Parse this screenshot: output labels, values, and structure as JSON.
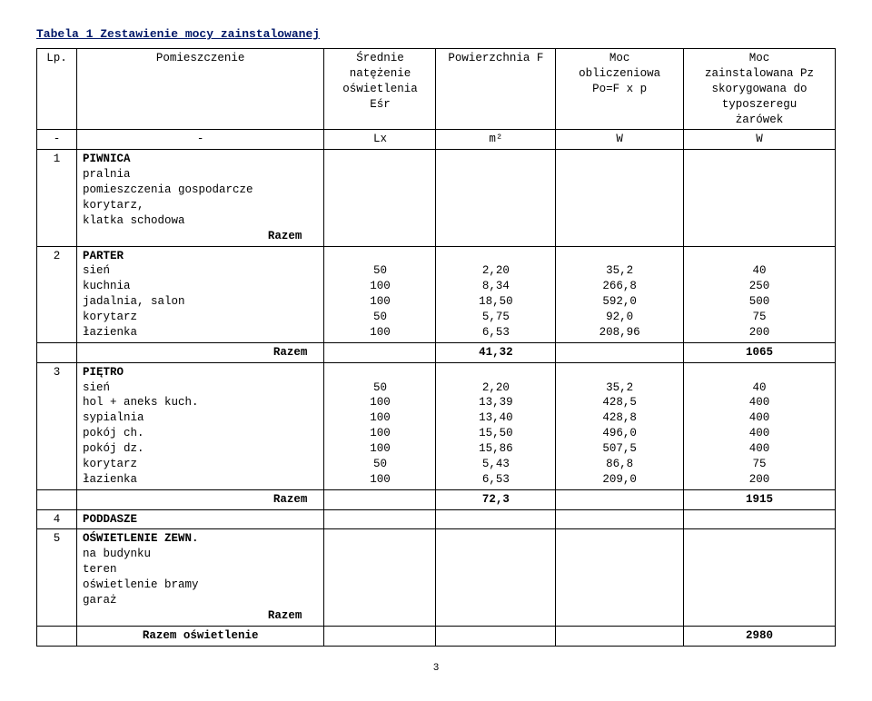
{
  "title": "Tabela 1 Zestawienie mocy zainstalowanej",
  "page_number": "3",
  "header": {
    "lp": "Lp.",
    "pomieszczenie": "Pomieszczenie",
    "esr": "Średnie\nnatężenie\noświetlenia\nEśr",
    "f": "Powierzchnia F",
    "po": "Moc\nobliczeniowa\nPo=F x p",
    "pz": "Moc\nzainstalowana Pz\nskorygowana do\ntyposzeregu\nżarówek"
  },
  "units": {
    "lp": "-",
    "pom": "-",
    "esr": "Lx",
    "f": "m²",
    "po": "W",
    "pz": "W"
  },
  "sec1": {
    "n": "1",
    "name": "PIWNICA",
    "rows": [
      "pralnia",
      "pomieszczenia gospodarcze",
      "korytarz,",
      "klatka schodowa"
    ],
    "razem": "Razem"
  },
  "sec2": {
    "n": "2",
    "name": "PARTER",
    "rows": [
      {
        "label": "sień",
        "esr": "50",
        "f": "2,20",
        "po": "35,2",
        "pz": "40"
      },
      {
        "label": "kuchnia",
        "esr": "100",
        "f": "8,34",
        "po": "266,8",
        "pz": "250"
      },
      {
        "label": "jadalnia, salon",
        "esr": "100",
        "f": "18,50",
        "po": "592,0",
        "pz": "500"
      },
      {
        "label": "korytarz",
        "esr": "50",
        "f": "5,75",
        "po": "92,0",
        "pz": "75"
      },
      {
        "label": "łazienka",
        "esr": "100",
        "f": "6,53",
        "po": "208,96",
        "pz": "200"
      }
    ],
    "razem": "Razem",
    "sum_f": "41,32",
    "sum_pz": "1065"
  },
  "sec3": {
    "n": "3",
    "name": "PIĘTRO",
    "rows": [
      {
        "label": "sień",
        "esr": "50",
        "f": "2,20",
        "po": "35,2",
        "pz": "40"
      },
      {
        "label": "hol + aneks kuch.",
        "esr": "100",
        "f": "13,39",
        "po": "428,5",
        "pz": "400"
      },
      {
        "label": "sypialnia",
        "esr": "100",
        "f": "13,40",
        "po": "428,8",
        "pz": "400"
      },
      {
        "label": "pokój ch.",
        "esr": "100",
        "f": "15,50",
        "po": "496,0",
        "pz": "400"
      },
      {
        "label": "pokój dz.",
        "esr": "100",
        "f": "15,86",
        "po": "507,5",
        "pz": "400"
      },
      {
        "label": "korytarz",
        "esr": "50",
        "f": "5,43",
        "po": "86,8",
        "pz": "75"
      },
      {
        "label": "łazienka",
        "esr": "100",
        "f": "6,53",
        "po": "209,0",
        "pz": "200"
      }
    ],
    "razem": "Razem",
    "sum_f": "72,3",
    "sum_pz": "1915"
  },
  "sec4": {
    "n": "4",
    "name": "PODDASZE"
  },
  "sec5": {
    "n": "5",
    "name": "OŚWIETLENIE ZEWN.",
    "rows": [
      "na budynku",
      "teren",
      "oświetlenie bramy",
      "garaż"
    ],
    "razem": "Razem"
  },
  "total": {
    "label": "Razem oświetlenie",
    "pz": "2980"
  }
}
